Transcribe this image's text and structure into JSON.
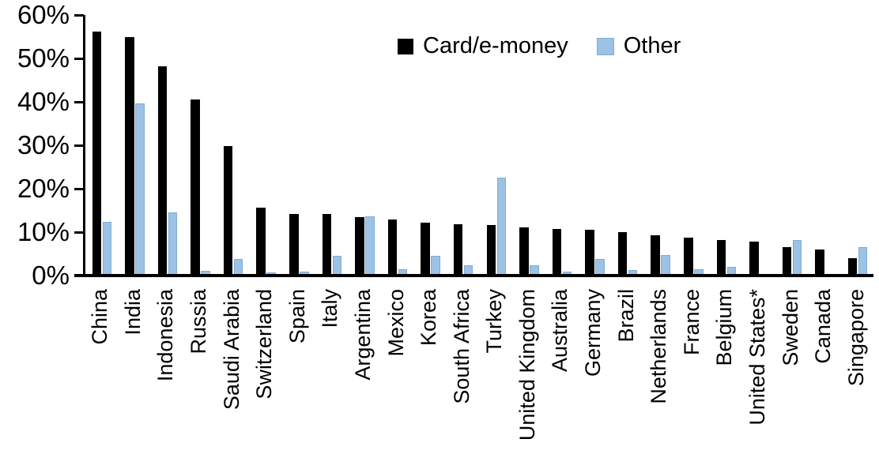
{
  "chart_data": {
    "type": "bar",
    "title": "",
    "xlabel": "",
    "ylabel": "",
    "categories": [
      "China",
      "India",
      "Indonesia",
      "Russia",
      "Saudi Arabia",
      "Switzerland",
      "Spain",
      "Italy",
      "Argentina",
      "Mexico",
      "Korea",
      "South Africa",
      "Turkey",
      "United Kingdom",
      "Australia",
      "Germany",
      "Brazil",
      "Netherlands",
      "France",
      "Belgium",
      "United States*",
      "Sweden",
      "Canada",
      "Singapore"
    ],
    "series": [
      {
        "name": "Card/e-money",
        "color": "#000000",
        "values": [
          56.2,
          55.0,
          48.2,
          40.5,
          29.8,
          15.6,
          14.2,
          14.1,
          13.4,
          13.0,
          12.2,
          11.8,
          11.6,
          11.1,
          10.8,
          10.6,
          10.0,
          9.3,
          8.7,
          8.2,
          7.9,
          6.6,
          6.0,
          4.0
        ]
      },
      {
        "name": "Other",
        "color": "#9CC2E5",
        "values": [
          12.3,
          39.6,
          14.6,
          1.1,
          3.9,
          0.8,
          1.0,
          4.6,
          13.7,
          1.4,
          4.6,
          2.4,
          22.5,
          2.4,
          1.0,
          3.9,
          1.2,
          4.8,
          1.5,
          2.0,
          0.3,
          8.1,
          0.0,
          6.6
        ]
      }
    ],
    "y_ticks": [
      "0%",
      "10%",
      "20%",
      "30%",
      "40%",
      "50%",
      "60%"
    ],
    "ylim": [
      0,
      60
    ],
    "y_tick_step": 10,
    "grid": false,
    "legend_position": "top-center-right"
  },
  "colors": {
    "card_emoney_bar": "#000000",
    "other_bar": "#9CC2E5",
    "other_bar_border": "#7FACD6",
    "axis": "#000000",
    "background": "#FFFFFF"
  }
}
